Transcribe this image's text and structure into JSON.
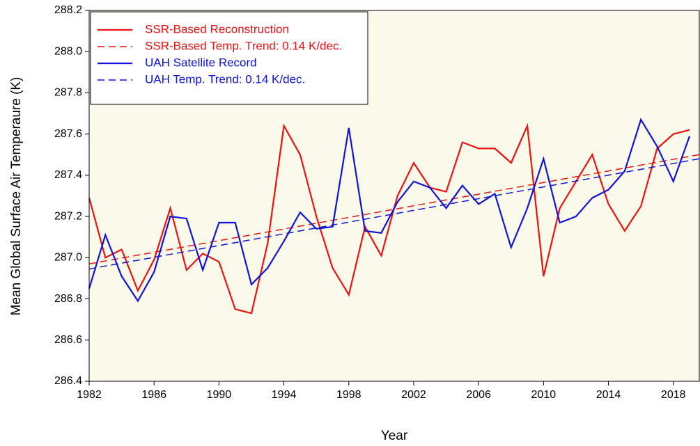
{
  "chart_data": {
    "type": "line",
    "x_label": "Year",
    "y_label": "Mean Global Surface Air Temperaure (K)",
    "x": [
      1982,
      1983,
      1984,
      1985,
      1986,
      1987,
      1988,
      1989,
      1990,
      1991,
      1992,
      1993,
      1994,
      1995,
      1996,
      1997,
      1998,
      1999,
      2000,
      2001,
      2002,
      2003,
      2004,
      2005,
      2006,
      2007,
      2008,
      2009,
      2010,
      2011,
      2012,
      2013,
      2014,
      2015,
      2016,
      2017,
      2018,
      2019
    ],
    "series": [
      {
        "name": "SSR-Based Reconstruction",
        "color": "#ee1111",
        "dashed": false,
        "values": [
          287.29,
          287.0,
          287.04,
          286.84,
          286.99,
          287.24,
          286.94,
          287.02,
          286.98,
          286.75,
          286.73,
          287.07,
          287.64,
          287.5,
          287.2,
          286.95,
          286.82,
          287.15,
          287.01,
          287.3,
          287.46,
          287.34,
          287.32,
          287.56,
          287.53,
          287.53,
          287.46,
          287.64,
          286.91,
          287.24,
          287.37,
          287.5,
          287.26,
          287.13,
          287.25,
          287.53,
          287.6,
          287.62
        ]
      },
      {
        "name": "SSR-Based Temp. Trend: 0.14 K/dec.",
        "color": "#ee1111",
        "dashed": true,
        "x": [
          1982,
          2019.6
        ],
        "values": [
          286.97,
          287.5
        ]
      },
      {
        "name": "UAH Satellite Record",
        "color": "#1111dd",
        "dashed": false,
        "values": [
          286.85,
          287.11,
          286.91,
          286.79,
          286.93,
          287.2,
          287.19,
          286.94,
          287.17,
          287.17,
          286.87,
          286.95,
          287.08,
          287.22,
          287.14,
          287.15,
          287.63,
          287.13,
          287.12,
          287.27,
          287.37,
          287.34,
          287.24,
          287.35,
          287.26,
          287.31,
          287.05,
          287.24,
          287.48,
          287.17,
          287.2,
          287.29,
          287.33,
          287.42,
          287.67,
          287.54,
          287.37,
          287.59
        ]
      },
      {
        "name": "UAH Temp. Trend: 0.14 K/dec.",
        "color": "#1111dd",
        "dashed": true,
        "x": [
          1982,
          2019.6
        ],
        "values": [
          286.945,
          287.48
        ]
      }
    ],
    "xlim": [
      1982,
      2019.6
    ],
    "xticks": [
      1982,
      1986,
      1990,
      1994,
      1998,
      2002,
      2006,
      2010,
      2014,
      2018
    ],
    "ylim": [
      286.4,
      288.2
    ],
    "yticks": [
      286.4,
      286.6,
      286.8,
      {
        "value": 287.0,
        "label": "287.0"
      },
      287.2,
      287.4,
      287.6,
      287.8,
      {
        "value": 288.0,
        "label": "288.0"
      },
      288.2
    ],
    "legend": "upper-left",
    "background": "#fafaea",
    "grid": false
  }
}
